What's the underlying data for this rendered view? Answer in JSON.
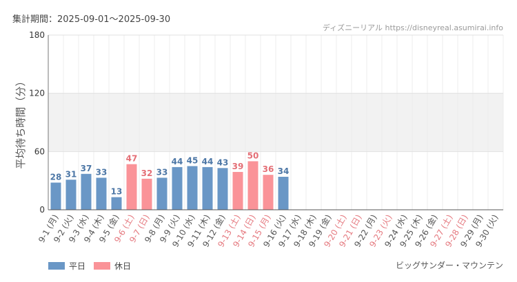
{
  "header": {
    "period": "集計期間：2025-09-01～2025-09-30"
  },
  "source": {
    "text": "ディズニーリアル https://disneyreal.asumirai.info"
  },
  "chart_data": {
    "type": "bar",
    "title": "",
    "ylabel": "平均待ち時間（分）",
    "xlabel": "",
    "ylim": [
      0,
      180
    ],
    "yticks": [
      0,
      60,
      120,
      180
    ],
    "shaded_band": [
      60,
      120
    ],
    "categories": [
      "9-1 (月)",
      "9-2 (火)",
      "9-3 (水)",
      "9-4 (木)",
      "9-5 (金)",
      "9-6 (土)",
      "9-7 (日)",
      "9-8 (月)",
      "9-9 (火)",
      "9-10 (水)",
      "9-11 (木)",
      "9-12 (金)",
      "9-13 (土)",
      "9-14 (日)",
      "9-15 (月)",
      "9-16 (火)",
      "9-17 (水)",
      "9-18 (木)",
      "9-19 (金)",
      "9-20 (土)",
      "9-21 (日)",
      "9-22 (月)",
      "9-23 (火)",
      "9-24 (水)",
      "9-25 (木)",
      "9-26 (金)",
      "9-27 (土)",
      "9-28 (日)",
      "9-29 (月)",
      "9-30 (火)"
    ],
    "values": [
      28,
      31,
      37,
      33,
      13,
      47,
      32,
      33,
      44,
      45,
      44,
      43,
      39,
      50,
      36,
      34,
      null,
      null,
      null,
      null,
      null,
      null,
      null,
      null,
      null,
      null,
      null,
      null,
      null,
      null
    ],
    "day_type": [
      "平日",
      "平日",
      "平日",
      "平日",
      "平日",
      "休日",
      "休日",
      "平日",
      "平日",
      "平日",
      "平日",
      "平日",
      "休日",
      "休日",
      "休日",
      "平日",
      "平日",
      "平日",
      "平日",
      "休日",
      "休日",
      "平日",
      "休日",
      "平日",
      "平日",
      "平日",
      "休日",
      "休日",
      "平日",
      "平日"
    ],
    "legend": [
      {
        "name": "平日",
        "color": "#6a97c6"
      },
      {
        "name": "休日",
        "color": "#fa9398"
      }
    ],
    "legend_position": "bottom-left",
    "colors": {
      "weekday_label": "#555555",
      "holiday_label": "#e57a80",
      "weekday_value": "#4d77a6",
      "holiday_value": "#e46f76"
    }
  },
  "footer": {
    "attraction": "ビッグサンダー・マウンテン"
  }
}
